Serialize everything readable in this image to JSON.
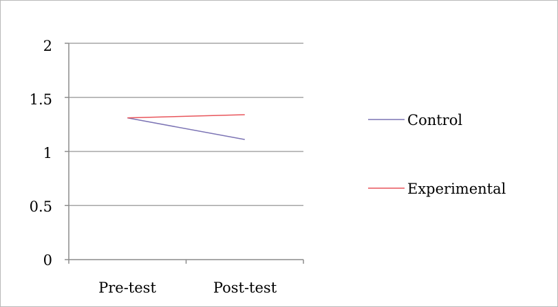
{
  "chart_data": {
    "type": "line",
    "title": "",
    "xlabel": "",
    "ylabel": "",
    "categories": [
      "Pre-test",
      "Post-test"
    ],
    "ylim": [
      0,
      2
    ],
    "yticks": [
      "0",
      "0.5",
      "1",
      "1.5",
      "2"
    ],
    "grid": true,
    "legend_position": "right",
    "series": [
      {
        "name": "Control",
        "values": [
          1.31,
          1.11
        ],
        "color": "#7b73b4"
      },
      {
        "name": "Experimental",
        "values": [
          1.31,
          1.34
        ],
        "color": "#e8545a"
      }
    ]
  }
}
